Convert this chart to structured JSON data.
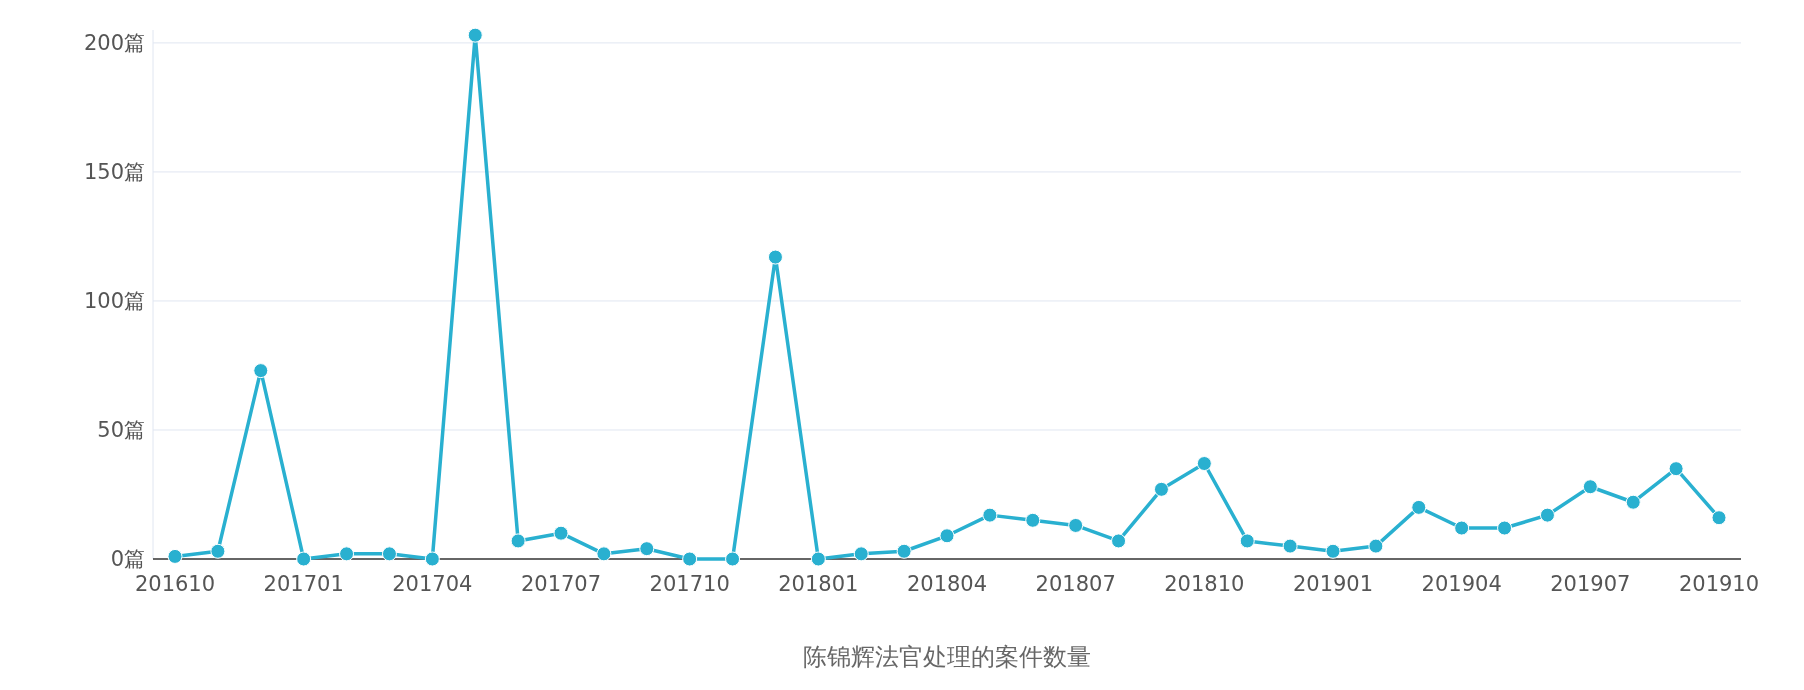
{
  "chart_data": {
    "type": "line",
    "xlabel": "陈锦辉法官处理的案件数量",
    "categories": [
      "201610",
      null,
      null,
      "201701",
      null,
      null,
      "201704",
      null,
      null,
      "201707",
      null,
      null,
      "201710",
      null,
      null,
      "201801",
      null,
      null,
      "201804",
      null,
      null,
      "201807",
      null,
      null,
      "201810",
      null,
      null,
      "201901",
      null,
      null,
      "201904",
      null,
      null,
      "201907",
      null,
      null,
      "201910"
    ],
    "series": [
      {
        "color": "#29b0d0",
        "values": [
          1,
          3,
          73,
          0,
          2,
          2,
          0,
          203,
          7,
          10,
          2,
          4,
          0,
          0,
          117,
          0,
          2,
          3,
          9,
          17,
          15,
          13,
          7,
          27,
          37,
          7,
          5,
          3,
          5,
          20,
          12,
          12,
          17,
          28,
          22,
          35,
          16
        ]
      }
    ],
    "ylim": [
      0,
      205
    ],
    "yticks": [
      {
        "value": 0,
        "label": "0篇"
      },
      {
        "value": 50,
        "label": "50篇"
      },
      {
        "value": 100,
        "label": "100篇"
      },
      {
        "value": 150,
        "label": "150篇"
      },
      {
        "value": 200,
        "label": "200篇"
      }
    ],
    "grid": "y",
    "marker": "circle",
    "line_style": "solid"
  }
}
